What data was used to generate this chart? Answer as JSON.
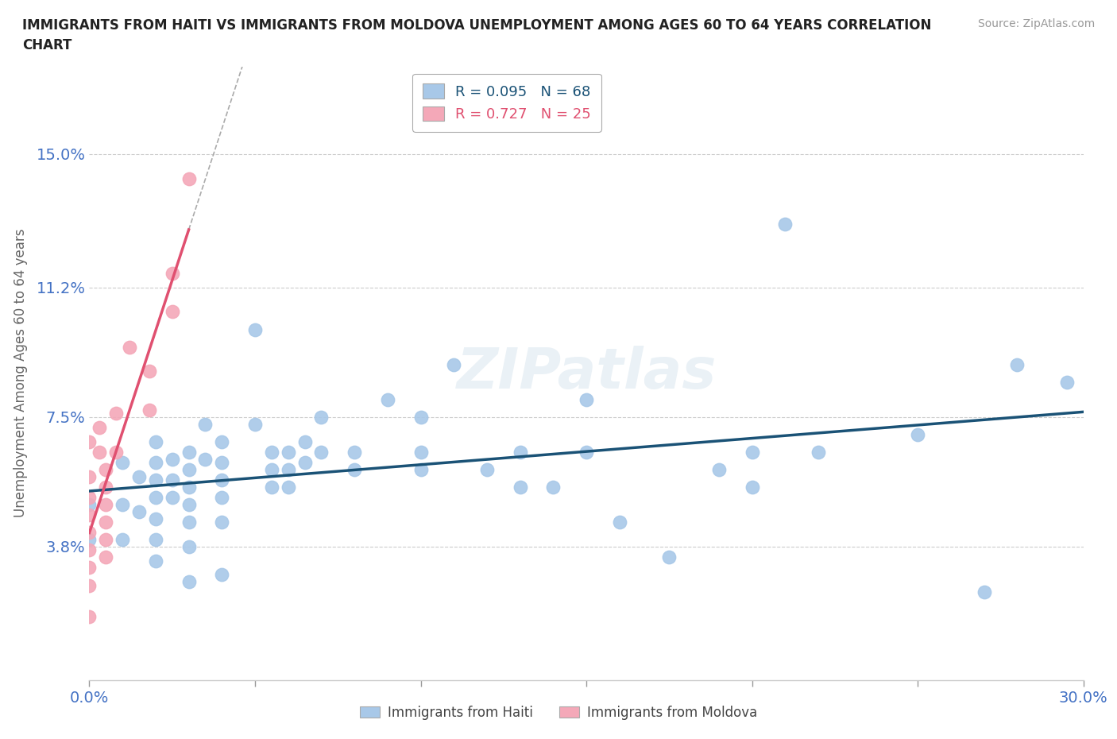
{
  "title_line1": "IMMIGRANTS FROM HAITI VS IMMIGRANTS FROM MOLDOVA UNEMPLOYMENT AMONG AGES 60 TO 64 YEARS CORRELATION",
  "title_line2": "CHART",
  "source_text": "Source: ZipAtlas.com",
  "ylabel": "Unemployment Among Ages 60 to 64 years",
  "xlim": [
    0.0,
    0.3
  ],
  "ylim": [
    0.0,
    0.175
  ],
  "yticks": [
    0.038,
    0.075,
    0.112,
    0.15
  ],
  "ytick_labels": [
    "3.8%",
    "7.5%",
    "11.2%",
    "15.0%"
  ],
  "xticks": [
    0.0,
    0.05,
    0.1,
    0.15,
    0.2,
    0.25,
    0.3
  ],
  "xtick_labels": [
    "0.0%",
    "",
    "",
    "",
    "",
    "",
    "30.0%"
  ],
  "haiti_color": "#a8c8e8",
  "moldova_color": "#f4a8b8",
  "haiti_line_color": "#1a5276",
  "moldova_line_color": "#e05070",
  "haiti_R": 0.095,
  "haiti_N": 68,
  "moldova_R": 0.727,
  "moldova_N": 25,
  "haiti_scatter": [
    [
      0.0,
      0.05
    ],
    [
      0.0,
      0.04
    ],
    [
      0.01,
      0.062
    ],
    [
      0.01,
      0.05
    ],
    [
      0.01,
      0.04
    ],
    [
      0.015,
      0.058
    ],
    [
      0.015,
      0.048
    ],
    [
      0.02,
      0.068
    ],
    [
      0.02,
      0.062
    ],
    [
      0.02,
      0.057
    ],
    [
      0.02,
      0.052
    ],
    [
      0.02,
      0.046
    ],
    [
      0.02,
      0.04
    ],
    [
      0.02,
      0.034
    ],
    [
      0.025,
      0.063
    ],
    [
      0.025,
      0.057
    ],
    [
      0.025,
      0.052
    ],
    [
      0.03,
      0.065
    ],
    [
      0.03,
      0.06
    ],
    [
      0.03,
      0.055
    ],
    [
      0.03,
      0.05
    ],
    [
      0.03,
      0.045
    ],
    [
      0.03,
      0.038
    ],
    [
      0.03,
      0.028
    ],
    [
      0.035,
      0.073
    ],
    [
      0.035,
      0.063
    ],
    [
      0.04,
      0.068
    ],
    [
      0.04,
      0.062
    ],
    [
      0.04,
      0.057
    ],
    [
      0.04,
      0.052
    ],
    [
      0.04,
      0.045
    ],
    [
      0.04,
      0.03
    ],
    [
      0.05,
      0.1
    ],
    [
      0.05,
      0.073
    ],
    [
      0.055,
      0.065
    ],
    [
      0.055,
      0.06
    ],
    [
      0.055,
      0.055
    ],
    [
      0.06,
      0.065
    ],
    [
      0.06,
      0.06
    ],
    [
      0.06,
      0.055
    ],
    [
      0.065,
      0.068
    ],
    [
      0.065,
      0.062
    ],
    [
      0.07,
      0.075
    ],
    [
      0.07,
      0.065
    ],
    [
      0.08,
      0.065
    ],
    [
      0.08,
      0.06
    ],
    [
      0.09,
      0.08
    ],
    [
      0.1,
      0.075
    ],
    [
      0.1,
      0.065
    ],
    [
      0.1,
      0.06
    ],
    [
      0.11,
      0.09
    ],
    [
      0.12,
      0.06
    ],
    [
      0.13,
      0.065
    ],
    [
      0.13,
      0.055
    ],
    [
      0.14,
      0.055
    ],
    [
      0.15,
      0.08
    ],
    [
      0.15,
      0.065
    ],
    [
      0.16,
      0.045
    ],
    [
      0.175,
      0.035
    ],
    [
      0.19,
      0.06
    ],
    [
      0.2,
      0.065
    ],
    [
      0.2,
      0.055
    ],
    [
      0.21,
      0.13
    ],
    [
      0.22,
      0.065
    ],
    [
      0.25,
      0.07
    ],
    [
      0.27,
      0.025
    ],
    [
      0.28,
      0.09
    ],
    [
      0.295,
      0.085
    ]
  ],
  "moldova_scatter": [
    [
      0.0,
      0.068
    ],
    [
      0.0,
      0.058
    ],
    [
      0.0,
      0.052
    ],
    [
      0.0,
      0.047
    ],
    [
      0.0,
      0.042
    ],
    [
      0.0,
      0.037
    ],
    [
      0.0,
      0.032
    ],
    [
      0.0,
      0.027
    ],
    [
      0.0,
      0.018
    ],
    [
      0.003,
      0.072
    ],
    [
      0.003,
      0.065
    ],
    [
      0.005,
      0.06
    ],
    [
      0.005,
      0.055
    ],
    [
      0.005,
      0.05
    ],
    [
      0.005,
      0.045
    ],
    [
      0.005,
      0.04
    ],
    [
      0.005,
      0.035
    ],
    [
      0.008,
      0.076
    ],
    [
      0.008,
      0.065
    ],
    [
      0.012,
      0.095
    ],
    [
      0.018,
      0.088
    ],
    [
      0.018,
      0.077
    ],
    [
      0.025,
      0.116
    ],
    [
      0.025,
      0.105
    ],
    [
      0.03,
      0.143
    ]
  ]
}
